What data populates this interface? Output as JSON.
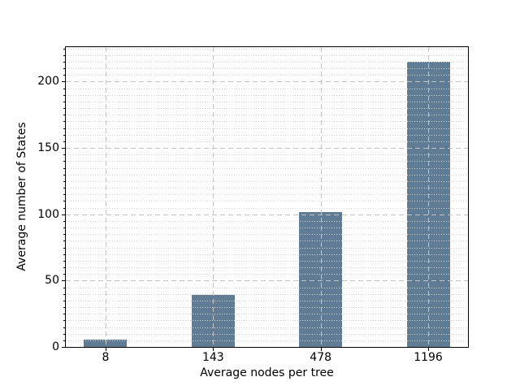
{
  "chart_data": {
    "type": "bar",
    "title": "",
    "xlabel": "Average nodes per tree",
    "ylabel": "Average number of States",
    "categories": [
      "8",
      "143",
      "478",
      "1196"
    ],
    "values": [
      5.5,
      39.5,
      101.5,
      215
    ],
    "yticks": [
      0,
      50,
      100,
      150,
      200
    ],
    "ytick_labels": [
      "0",
      "50",
      "100",
      "150",
      "200"
    ],
    "ylim": [
      0,
      226
    ],
    "minor_tick_step": 5,
    "bar_color": "#5f7c94",
    "grid": {
      "horizontal_major": "dashed",
      "horizontal_minor": "dotted",
      "vertical_major_at_categories": "dashed",
      "major_color": "#c3c3c3",
      "minor_color": "#d5d5d5",
      "drawn_above_bars": true
    },
    "legend": null,
    "background_color": "#ffffff"
  }
}
